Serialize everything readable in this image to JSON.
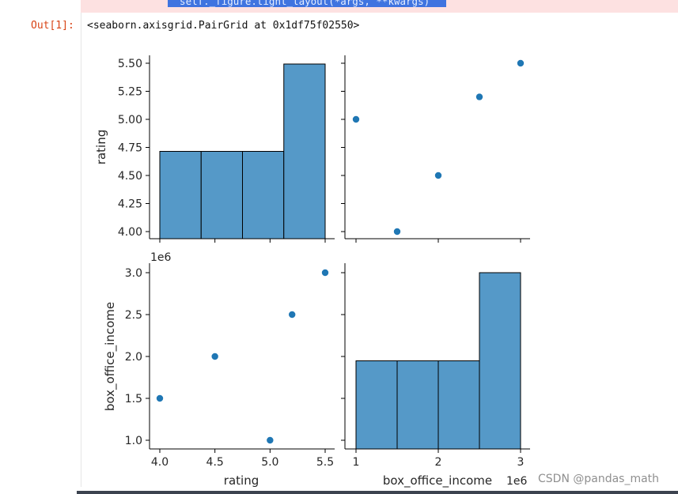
{
  "previous_cell": {
    "code_line": "  self._figure.tight_layout(*args, **kwargs)"
  },
  "output_cell": {
    "prompt": "Out[1]:",
    "repr": "<seaborn.axisgrid.PairGrid at 0x1df75f02550>"
  },
  "watermark": "CSDN @pandas_math",
  "colors": {
    "bar_fill": "#5599c8",
    "point": "#1f77b4",
    "prompt": "#d84315",
    "selection": "#3f74e0"
  },
  "chart_data": {
    "type": "pairgrid",
    "variables": [
      "rating",
      "box_office_income"
    ],
    "points": [
      {
        "rating": 4.0,
        "box_office_income": 1500000
      },
      {
        "rating": 4.5,
        "box_office_income": 2000000
      },
      {
        "rating": 5.0,
        "box_office_income": 1000000
      },
      {
        "rating": 5.2,
        "box_office_income": 2500000
      },
      {
        "rating": 5.5,
        "box_office_income": 3000000
      }
    ],
    "rating_hist": {
      "bin_edges": [
        4.0,
        4.375,
        4.75,
        5.125,
        5.5
      ],
      "counts": [
        1,
        1,
        1,
        2
      ]
    },
    "income_hist": {
      "bin_edges": [
        1.0,
        1.5,
        2.0,
        2.5,
        3.0
      ],
      "counts": [
        1,
        1,
        1,
        2
      ]
    },
    "rating_ticks": [
      "4.00",
      "4.25",
      "4.50",
      "4.75",
      "5.00",
      "5.25",
      "5.50"
    ],
    "rating_xticks": [
      "4.0",
      "4.5",
      "5.0",
      "5.5"
    ],
    "income_ticks": [
      "1.0",
      "1.5",
      "2.0",
      "2.5",
      "3.0"
    ],
    "income_xticks": [
      "1",
      "2",
      "3"
    ],
    "offset_label": "1e6",
    "ylabel_top": "rating",
    "ylabel_bottom": "box_office_income",
    "xlabel_left": "rating",
    "xlabel_right": "box_office_income"
  }
}
